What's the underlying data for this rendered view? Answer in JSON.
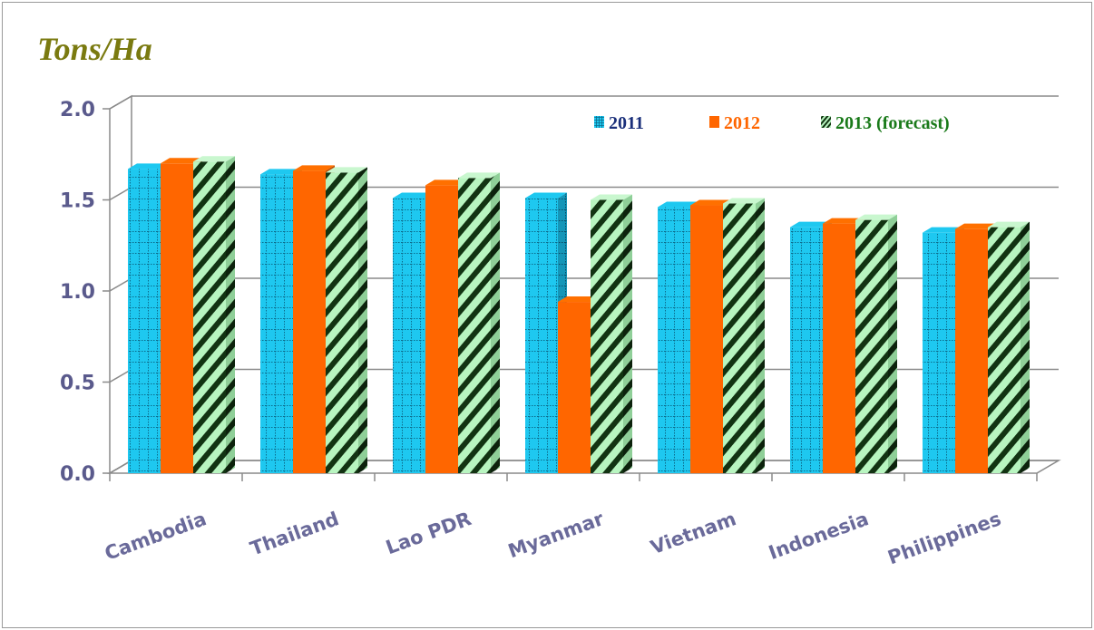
{
  "chart_data": {
    "type": "bar",
    "title": "Tons/Ha",
    "categories": [
      "Cambodia",
      "Thailand",
      "Lao PDR",
      "Myanmar",
      "Vietnam",
      "Indonesia",
      "Philippines"
    ],
    "series": [
      {
        "name": "2011",
        "values": [
          1.67,
          1.64,
          1.51,
          1.51,
          1.46,
          1.35,
          1.32
        ],
        "color": "#1ec8f0",
        "pattern": "grid"
      },
      {
        "name": "2012",
        "values": [
          1.7,
          1.66,
          1.58,
          0.94,
          1.47,
          1.37,
          1.34
        ],
        "color": "#ff6600",
        "pattern": "solid"
      },
      {
        "name": "2013 (forecast)",
        "values": [
          1.71,
          1.65,
          1.62,
          1.5,
          1.48,
          1.39,
          1.35
        ],
        "color": "#b8f5c0",
        "pattern": "diagonal-stripes"
      }
    ],
    "yticks": [
      "0.0",
      "0.5",
      "1.0",
      "1.5",
      "2.0"
    ],
    "ylim": [
      0,
      2
    ],
    "grid": true,
    "legend_position": "top-right",
    "legend_colors": [
      "#1a2f7a",
      "#ff6600",
      "#1a7a1a"
    ]
  }
}
